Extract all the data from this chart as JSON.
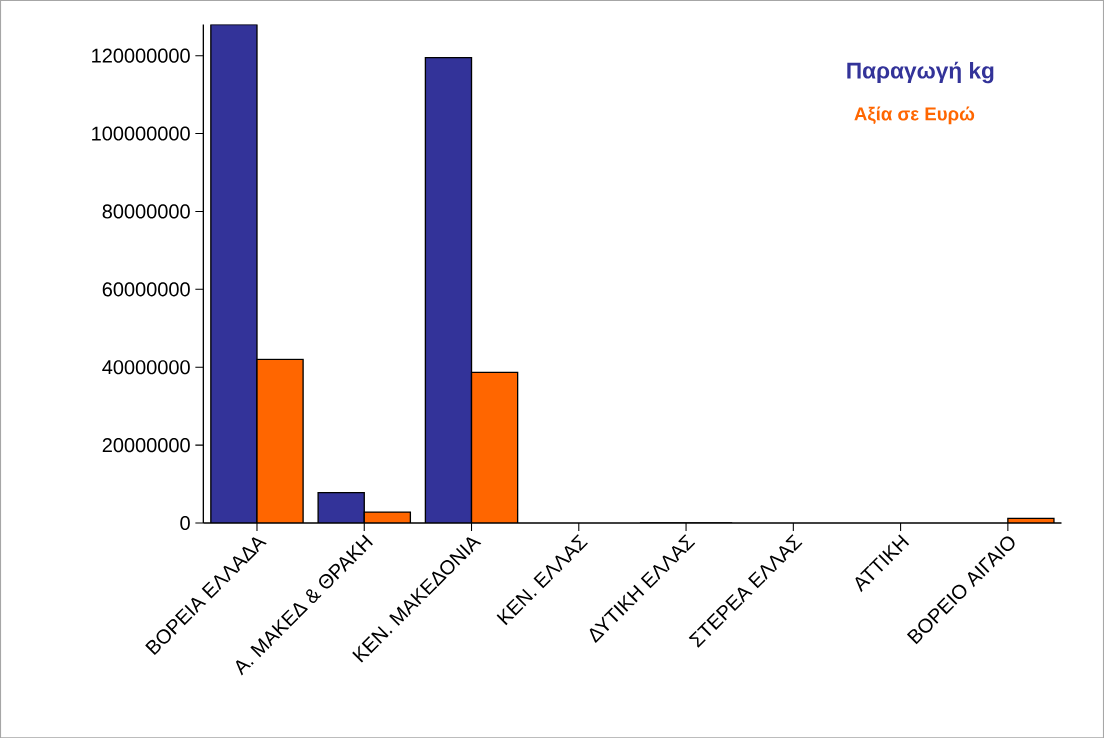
{
  "chart_data": {
    "type": "bar",
    "categories": [
      "ΒΟΡΕΙΑ ΕΛΛΑΔΑ",
      "Α. ΜΑΚΕΔ & ΘΡΑΚΗ",
      "ΚΕΝ. ΜΑΚΕΔΟΝΙΑ",
      "ΚΕΝ. ΕΛΛΑΣ",
      "ΔΥΤΙΚΗ ΕΛΛΑΣ",
      "ΣΤΕΡΕΑ ΕΛΛΑΣ",
      "ΑΤΤΙΚΗ",
      "ΒΟΡΕΙΟ ΑΙΓΑΙΟ"
    ],
    "series": [
      {
        "name": "Παραγωγή kg",
        "color": "#333399",
        "values": [
          128000000,
          7800000,
          119500000,
          null,
          0,
          null,
          null,
          null
        ]
      },
      {
        "name": "Αξία σε Ευρώ",
        "color": "#ff6600",
        "values": [
          42000000,
          2800000,
          38700000,
          null,
          0,
          null,
          null,
          1200000
        ]
      }
    ],
    "ylim": [
      0,
      128000000
    ],
    "yticks": [
      0,
      20000000,
      40000000,
      60000000,
      80000000,
      100000000,
      120000000
    ],
    "grid": false,
    "legend": "top right"
  }
}
